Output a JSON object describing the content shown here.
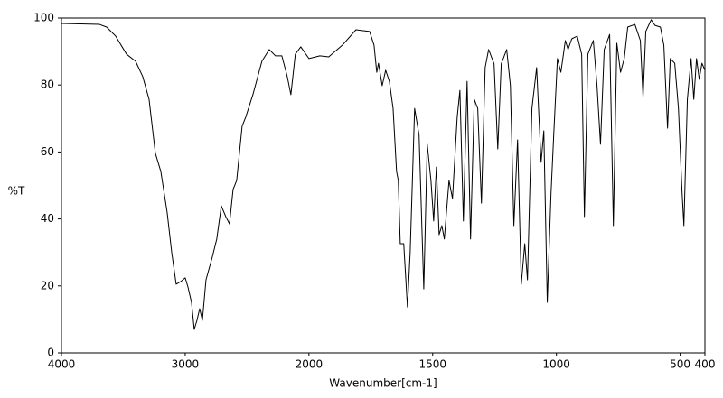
{
  "chart_data": {
    "type": "line",
    "xlabel": "Wavenumber[cm-1]",
    "ylabel": "%T",
    "xlim": [
      4000,
      400
    ],
    "ylim": [
      0,
      100
    ],
    "xticks": [
      4000,
      3000,
      2000,
      1500,
      1000,
      500,
      400
    ],
    "yticks": [
      0,
      20,
      40,
      60,
      80,
      100
    ],
    "x_scale_break": 2000,
    "x_scale_factor_above_break": 0.5,
    "grid": false,
    "series": [
      {
        "color": "#000000",
        "x": [
          4000,
          3693,
          3635,
          3562,
          3474,
          3401,
          3343,
          3292,
          3241,
          3197,
          3146,
          3109,
          3073,
          3036,
          3000,
          2978,
          2949,
          2927,
          2905,
          2883,
          2861,
          2832,
          2781,
          2745,
          2708,
          2672,
          2642,
          2613,
          2584,
          2540,
          2511,
          2453,
          2380,
          2321,
          2270,
          2219,
          2175,
          2146,
          2110,
          2066,
          2000,
          1956,
          1920,
          1865,
          1810,
          1755,
          1737,
          1726,
          1719,
          1704,
          1690,
          1675,
          1660,
          1646,
          1639,
          1631,
          1617,
          1602,
          1591,
          1573,
          1555,
          1536,
          1522,
          1507,
          1496,
          1485,
          1474,
          1463,
          1453,
          1434,
          1420,
          1401,
          1390,
          1376,
          1361,
          1347,
          1332,
          1318,
          1303,
          1288,
          1274,
          1252,
          1237,
          1223,
          1201,
          1186,
          1172,
          1157,
          1142,
          1128,
          1117,
          1099,
          1080,
          1062,
          1051,
          1037,
          1022,
          1011,
          996,
          982,
          964,
          953,
          938,
          916,
          898,
          887,
          873,
          851,
          836,
          822,
          807,
          785,
          770,
          756,
          741,
          726,
          712,
          683,
          661,
          650,
          639,
          617,
          602,
          580,
          566,
          551,
          540,
          522,
          507,
          493,
          485,
          471,
          456,
          445,
          434,
          423,
          412,
          400
        ],
        "values": [
          98.4,
          98.1,
          97.3,
          94.6,
          89.2,
          87.1,
          82.5,
          75.7,
          59.6,
          54.2,
          42,
          30,
          20.5,
          21.3,
          22.4,
          19.7,
          15.1,
          7,
          9.7,
          13.2,
          9.7,
          21.8,
          28.6,
          34,
          43.9,
          40.7,
          38.5,
          48.8,
          51.5,
          67.7,
          70.4,
          77.1,
          87.1,
          90.6,
          88.7,
          88.7,
          82.5,
          77.1,
          89.2,
          91.4,
          87.9,
          88.7,
          88.4,
          91.9,
          96.5,
          96,
          91.9,
          83.8,
          86.5,
          79.8,
          84.4,
          81.1,
          73,
          54.2,
          51.5,
          32.6,
          32.6,
          13.7,
          29.9,
          73,
          65,
          19.1,
          62.3,
          51.5,
          39.4,
          55.5,
          35.3,
          38,
          34,
          51.5,
          46.1,
          70.4,
          78.4,
          39.4,
          81.1,
          34,
          75.7,
          73,
          44.7,
          85.2,
          90.6,
          86.3,
          60.9,
          86.3,
          90.6,
          79.8,
          38,
          63.6,
          20.5,
          32.6,
          21.8,
          73,
          85.2,
          56.9,
          66.3,
          15.1,
          47.4,
          65,
          87.9,
          83.8,
          93.3,
          90.6,
          93.8,
          94.6,
          89.2,
          40.7,
          89.2,
          93.3,
          79.8,
          62.3,
          90.6,
          95.1,
          38,
          92.5,
          83.8,
          87.9,
          97.3,
          98.1,
          93.3,
          76.3,
          96,
          99.5,
          97.8,
          97.3,
          91.9,
          67.1,
          87.9,
          86.5,
          73,
          48.8,
          38,
          75.7,
          87.9,
          75.7,
          87.9,
          81.7,
          86.5,
          84.4
        ]
      }
    ]
  }
}
